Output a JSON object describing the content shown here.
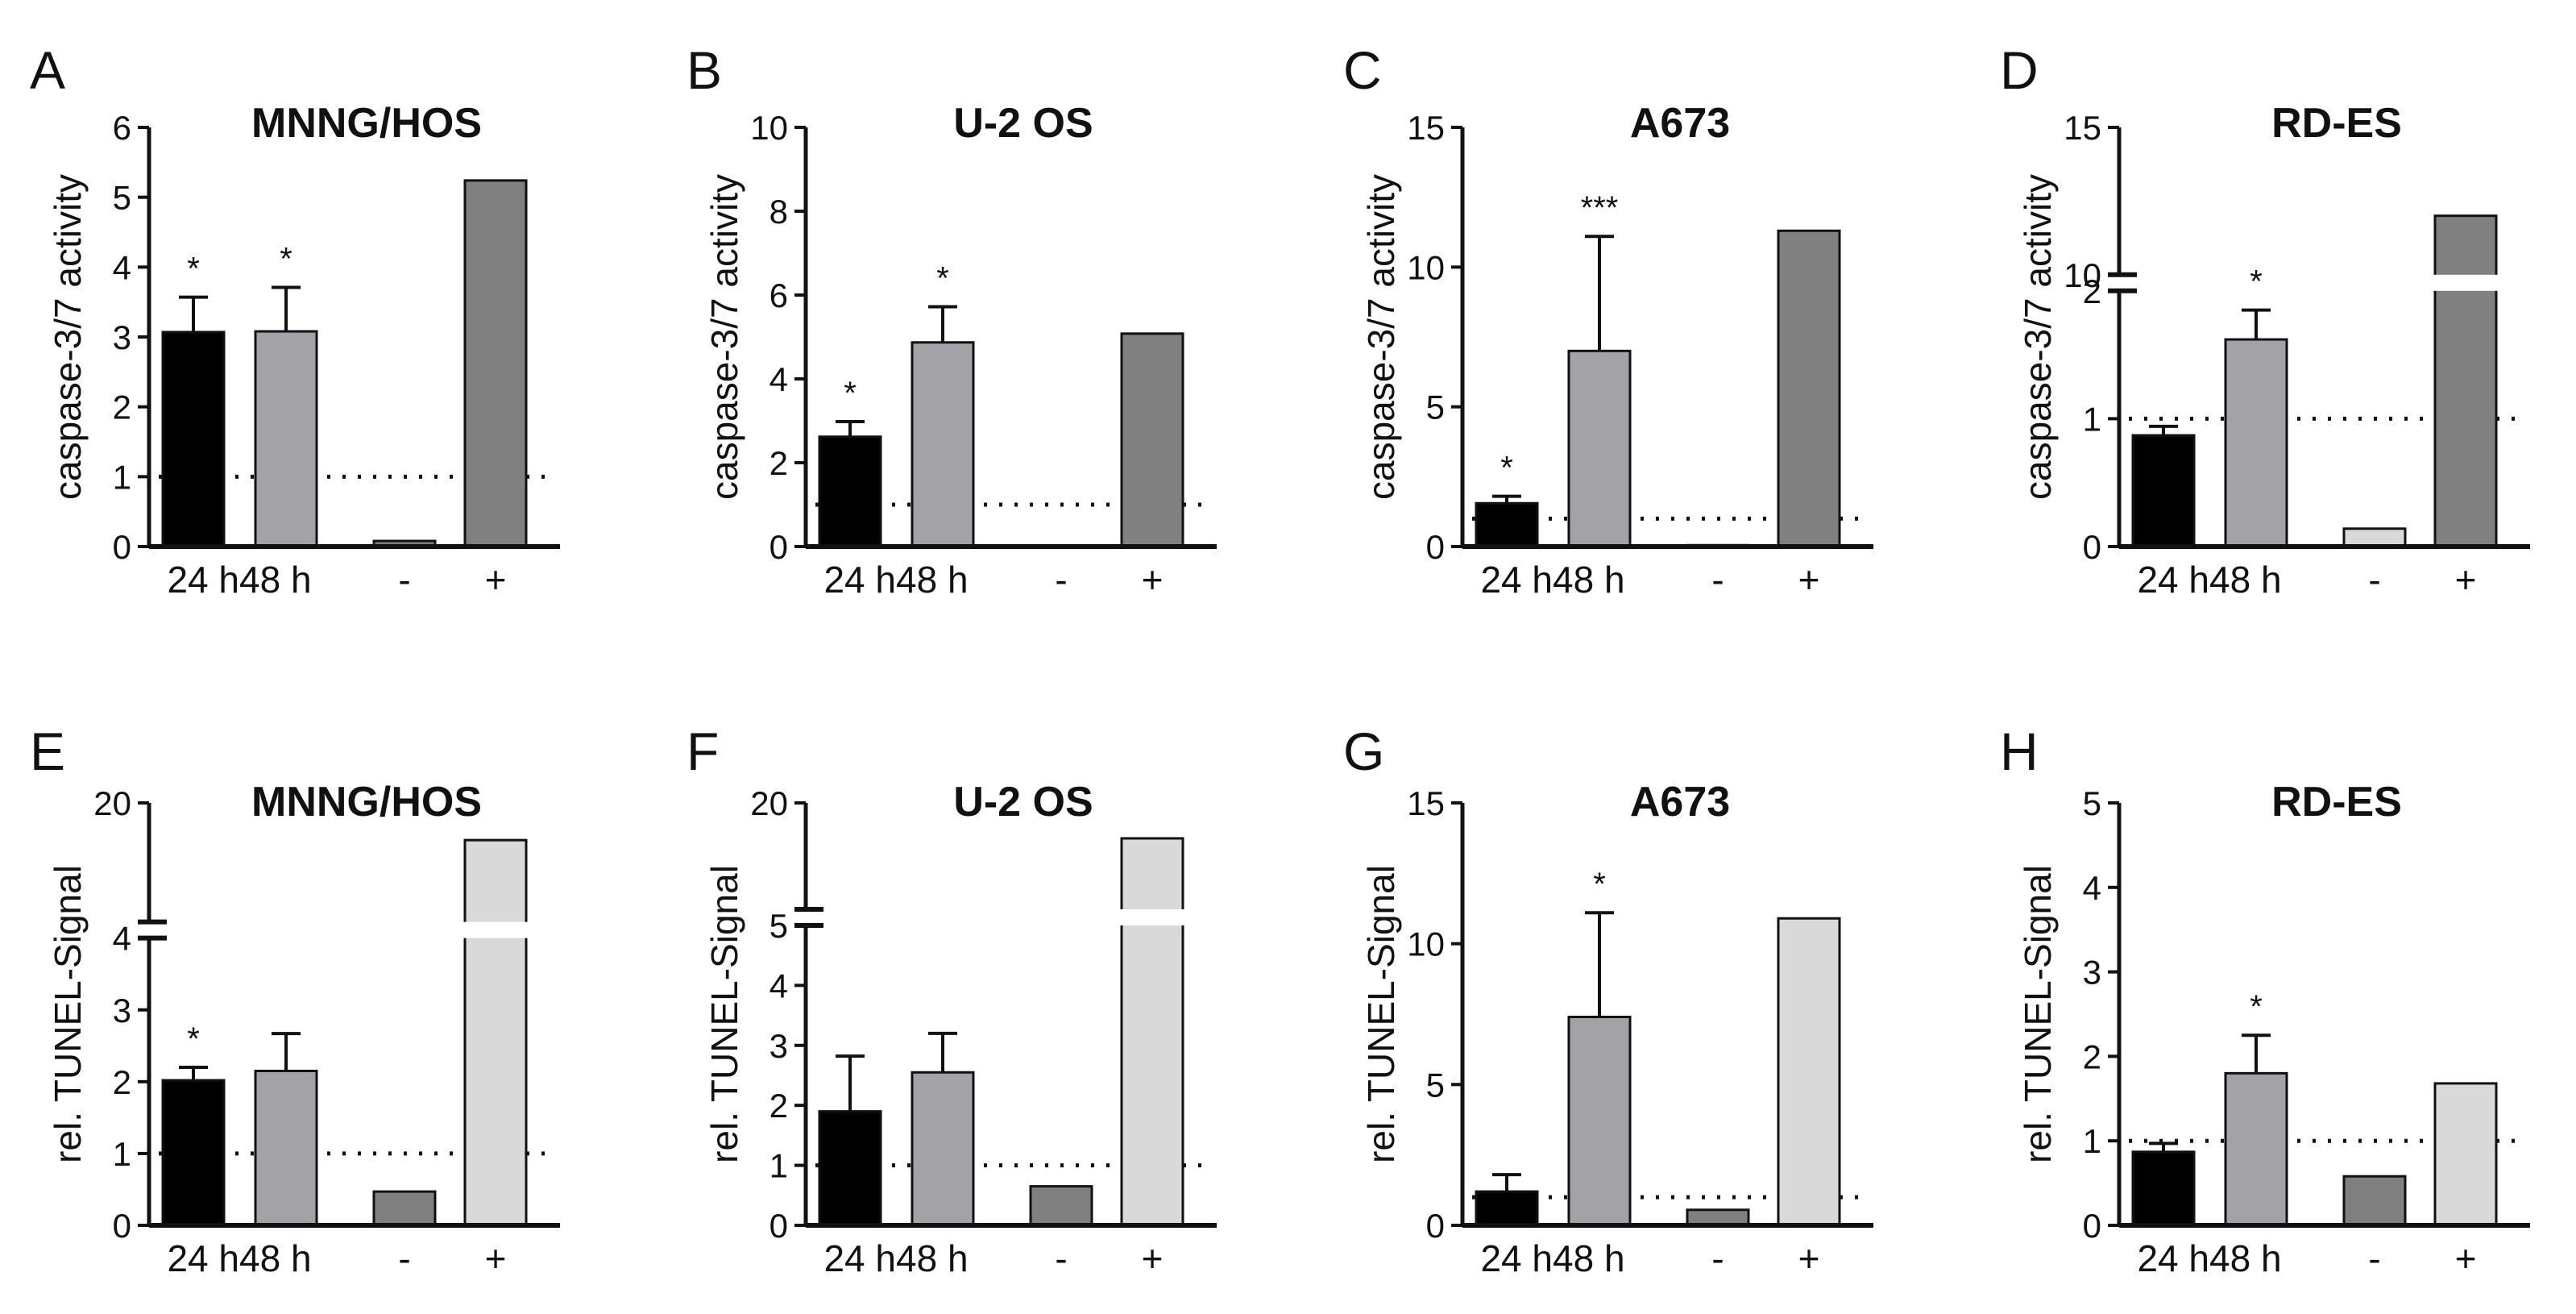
{
  "figure": {
    "description_panels": 8
  },
  "colors": {
    "bar_24h": "#000000",
    "bar_48h": "#a2a2a7",
    "bar_ctrl_dark": "#808080",
    "bar_ctrl_light": "#d9d9d9",
    "axis": "#111111",
    "bar_edge": "#111111"
  },
  "chart_data": [
    {
      "panel": "A",
      "type": "bar",
      "title": "MNNG/HOS",
      "ylabel": "caspase-3/7 activity",
      "categories": [
        "24 h",
        "48 h",
        "-",
        "+"
      ],
      "values": [
        3.07,
        3.08,
        0.08,
        5.24
      ],
      "errors": [
        0.5,
        0.63,
        0,
        0
      ],
      "significance": [
        "*",
        "*",
        "",
        ""
      ],
      "bar_colors": [
        "#000000",
        "#a2a2a7",
        "#808080",
        "#808080"
      ],
      "ylim": [
        0,
        6
      ],
      "yticks": [
        0,
        1,
        2,
        3,
        4,
        5,
        6
      ],
      "reference_line": 1
    },
    {
      "panel": "B",
      "type": "bar",
      "title": "U-2 OS",
      "ylabel": "caspase-3/7 activity",
      "categories": [
        "24 h",
        "48 h",
        "-",
        "+"
      ],
      "values": [
        2.62,
        4.87,
        0,
        5.08
      ],
      "errors": [
        0.36,
        0.85,
        0,
        0
      ],
      "significance": [
        "*",
        "*",
        "",
        ""
      ],
      "bar_colors": [
        "#000000",
        "#a2a2a7",
        "#808080",
        "#808080"
      ],
      "ylim": [
        0,
        10
      ],
      "yticks": [
        0,
        2,
        4,
        6,
        8,
        10
      ],
      "reference_line": 1
    },
    {
      "panel": "C",
      "type": "bar",
      "title": "A673",
      "ylabel": "caspase-3/7 activity",
      "categories": [
        "24 h",
        "48 h",
        "-",
        "+"
      ],
      "values": [
        1.55,
        7.0,
        0.05,
        11.3
      ],
      "errors": [
        0.25,
        4.1,
        0,
        0
      ],
      "significance": [
        "*",
        "***",
        "",
        ""
      ],
      "bar_colors": [
        "#000000",
        "#a2a2a7",
        "#808080",
        "#808080"
      ],
      "ylim": [
        0,
        15
      ],
      "yticks": [
        0,
        5,
        10,
        15
      ],
      "reference_line": 1
    },
    {
      "panel": "D",
      "type": "bar",
      "title": "RD-ES",
      "ylabel": "caspase-3/7 activity",
      "categories": [
        "24 h",
        "48 h",
        "-",
        "+"
      ],
      "values": [
        0.87,
        1.62,
        0.14,
        12
      ],
      "errors": [
        0.07,
        0.23,
        0,
        0
      ],
      "significance": [
        "",
        "*",
        "",
        ""
      ],
      "bar_colors": [
        "#000000",
        "#a2a2a7",
        "#d9d9d9",
        "#808080"
      ],
      "ylim": [
        0,
        15
      ],
      "yticks": [
        0,
        1,
        2,
        10,
        15
      ],
      "axis_break": {
        "lower": [
          0,
          2
        ],
        "upper": [
          10,
          15
        ]
      },
      "reference_line": 1
    },
    {
      "panel": "E",
      "type": "bar",
      "title": "MNNG/HOS",
      "ylabel": "rel. TUNEL-Signal",
      "categories": [
        "24 h",
        "48 h",
        "-",
        "+"
      ],
      "values": [
        2.02,
        2.15,
        0.47,
        15
      ],
      "errors": [
        0.18,
        0.52,
        0,
        0
      ],
      "significance": [
        "*",
        "",
        "",
        ""
      ],
      "bar_colors": [
        "#000000",
        "#a2a2a7",
        "#808080",
        "#d9d9d9"
      ],
      "ylim": [
        0,
        20
      ],
      "yticks": [
        0,
        1,
        2,
        3,
        4,
        20
      ],
      "axis_break": {
        "lower": [
          0,
          4
        ],
        "upper": [
          4,
          20
        ]
      },
      "reference_line": 1
    },
    {
      "panel": "F",
      "type": "bar",
      "title": "U-2 OS",
      "ylabel": "rel. TUNEL-Signal",
      "categories": [
        "24 h",
        "48 h",
        "-",
        "+"
      ],
      "values": [
        1.9,
        2.55,
        0.65,
        15
      ],
      "errors": [
        0.92,
        0.65,
        0,
        0
      ],
      "significance": [
        "",
        "",
        "",
        ""
      ],
      "bar_colors": [
        "#000000",
        "#a2a2a7",
        "#808080",
        "#d9d9d9"
      ],
      "ylim": [
        0,
        20
      ],
      "yticks": [
        0,
        1,
        2,
        3,
        4,
        5,
        20
      ],
      "axis_break": {
        "lower": [
          0,
          5
        ],
        "upper": [
          5,
          20
        ]
      },
      "reference_line": 1
    },
    {
      "panel": "G",
      "type": "bar",
      "title": "A673",
      "ylabel": "rel. TUNEL-Signal",
      "categories": [
        "24 h",
        "48 h",
        "-",
        "+"
      ],
      "values": [
        1.2,
        7.4,
        0.55,
        10.9
      ],
      "errors": [
        0.6,
        3.7,
        0,
        0
      ],
      "significance": [
        "",
        "*",
        "",
        ""
      ],
      "bar_colors": [
        "#000000",
        "#a2a2a7",
        "#808080",
        "#d9d9d9"
      ],
      "ylim": [
        0,
        15
      ],
      "yticks": [
        0,
        5,
        10,
        15
      ],
      "reference_line": 1
    },
    {
      "panel": "H",
      "type": "bar",
      "title": "RD-ES",
      "ylabel": "rel. TUNEL-Signal",
      "categories": [
        "24 h",
        "48 h",
        "-",
        "+"
      ],
      "values": [
        0.87,
        1.8,
        0.58,
        1.68
      ],
      "errors": [
        0.1,
        0.45,
        0,
        0
      ],
      "significance": [
        "",
        "*",
        "",
        ""
      ],
      "bar_colors": [
        "#000000",
        "#a2a2a7",
        "#808080",
        "#d9d9d9"
      ],
      "ylim": [
        0,
        5
      ],
      "yticks": [
        0,
        1,
        2,
        3,
        4,
        5
      ],
      "reference_line": 1
    }
  ]
}
